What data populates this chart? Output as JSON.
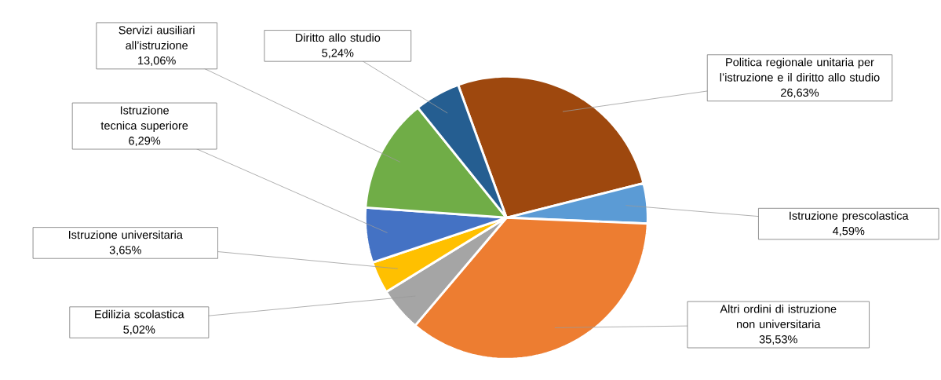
{
  "chart_data": {
    "type": "pie",
    "categories": [
      "Politica regionale unitaria per l’istruzione e il diritto allo studio",
      "Istruzione prescolastica",
      "Altri ordini di istruzione non universitaria",
      "Edilizia scolastica",
      "Istruzione universitaria",
      "Istruzione tecnica superiore",
      "Servizi ausiliari all’istruzione",
      "Diritto allo studio"
    ],
    "values": [
      26.63,
      4.59,
      35.53,
      5.02,
      3.65,
      6.29,
      13.06,
      5.24
    ],
    "colors": [
      "#9e480e",
      "#5b9bd5",
      "#ed7d31",
      "#a5a5a5",
      "#ffc000",
      "#4472c4",
      "#70ad47",
      "#255e91"
    ],
    "value_labels": [
      "26,63%",
      "4,59%",
      "35,53%",
      "5,02%",
      "3,65%",
      "6,29%",
      "13,06%",
      "5,24%"
    ]
  }
}
